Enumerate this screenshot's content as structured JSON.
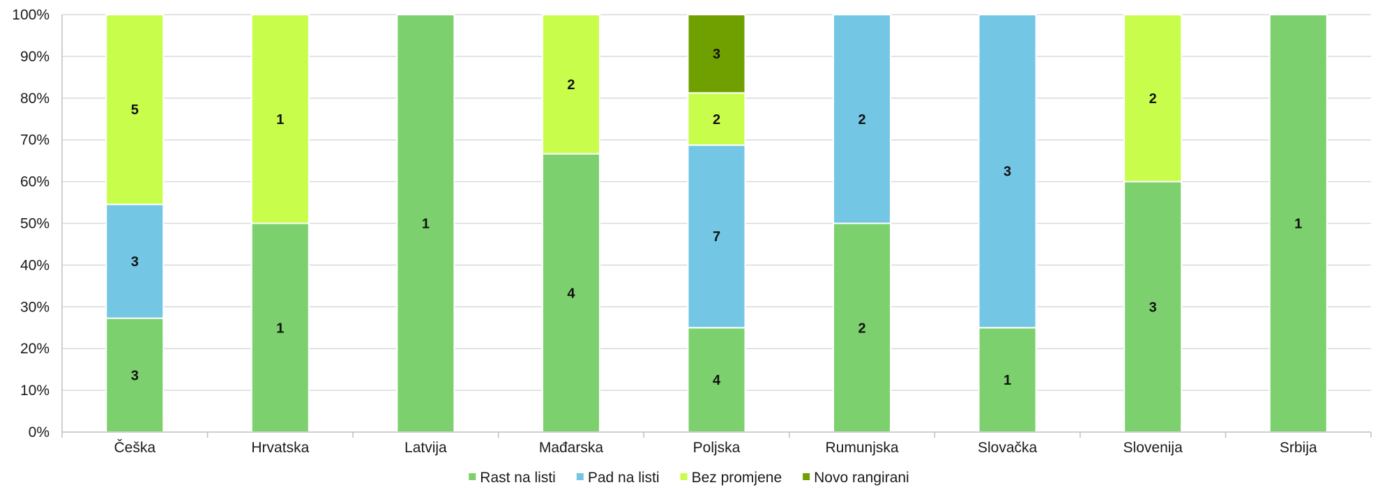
{
  "chart_data": {
    "type": "bar",
    "stacked": "percent",
    "categories": [
      "Češka",
      "Hrvatska",
      "Latvija",
      "Mađarska",
      "Poljska",
      "Rumunjska",
      "Slovačka",
      "Slovenija",
      "Srbija"
    ],
    "series": [
      {
        "name": "Rast na listi",
        "color": "#7dd06e",
        "values": [
          3,
          1,
          1,
          4,
          4,
          2,
          1,
          3,
          1
        ]
      },
      {
        "name": "Pad na listi",
        "color": "#73c7e5",
        "values": [
          3,
          0,
          0,
          0,
          7,
          2,
          3,
          0,
          0
        ]
      },
      {
        "name": "Bez promjene",
        "color": "#c8fd4c",
        "values": [
          5,
          1,
          0,
          2,
          2,
          0,
          0,
          2,
          0
        ]
      },
      {
        "name": "Novo rangirani",
        "color": "#70a000",
        "values": [
          0,
          0,
          0,
          0,
          3,
          0,
          0,
          0,
          0
        ]
      }
    ],
    "y_ticks": [
      "0%",
      "10%",
      "20%",
      "30%",
      "40%",
      "50%",
      "60%",
      "70%",
      "80%",
      "90%",
      "100%"
    ],
    "ylim": [
      0,
      100
    ],
    "grid": true,
    "legend": "bottom-center",
    "title": "",
    "xlabel": "",
    "ylabel": ""
  }
}
